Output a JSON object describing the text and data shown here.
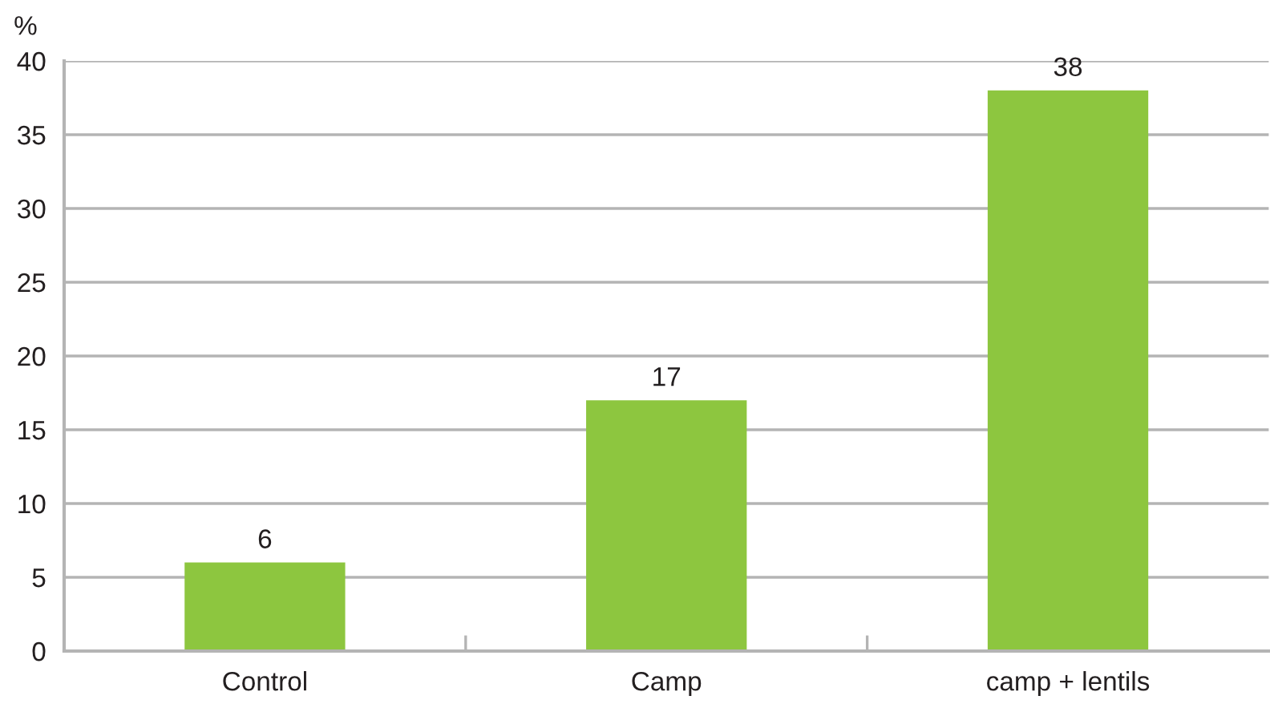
{
  "chart_data": {
    "type": "bar",
    "ylabel": "%",
    "categories": [
      "Control",
      "Camp",
      "camp + lentils"
    ],
    "values": [
      6,
      17,
      38
    ],
    "color": "#8dc63f",
    "ylim": [
      0,
      40
    ],
    "yticks": [
      0,
      5,
      10,
      15,
      20,
      25,
      30,
      35,
      40
    ],
    "grid": "y",
    "data_labels": true
  }
}
